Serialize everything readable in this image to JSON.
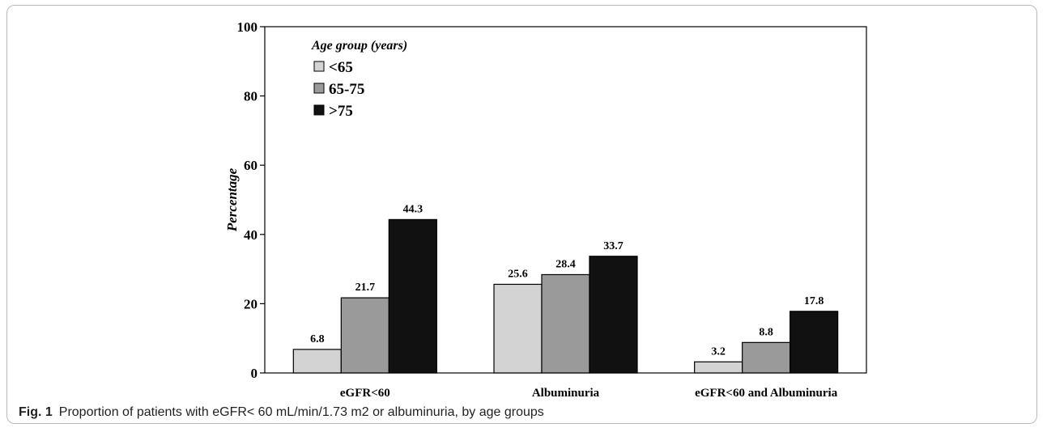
{
  "figure": {
    "caption_label": "Fig. 1",
    "caption_text": "Proportion of patients with eGFR< 60 mL/min/1.73 m2 or albuminuria, by age groups"
  },
  "chart_data": {
    "type": "bar",
    "title": "",
    "xlabel": "",
    "ylabel": "Percentage",
    "ylim": [
      0,
      100
    ],
    "yticks": [
      0,
      20,
      40,
      60,
      80,
      100
    ],
    "categories": [
      "eGFR<60",
      "Albuminuria",
      "eGFR<60 and Albuminuria"
    ],
    "legend": {
      "title": "Age group (years)",
      "position": "top-left"
    },
    "series": [
      {
        "name": "<65",
        "color": "#d3d3d3",
        "values": [
          6.8,
          25.6,
          3.2
        ],
        "labels": [
          "6.8",
          "25.6",
          "3.2"
        ]
      },
      {
        "name": "65-75",
        "color": "#9a9a9a",
        "values": [
          21.7,
          28.4,
          8.8
        ],
        "labels": [
          "21.7",
          "28.4",
          "8.8"
        ]
      },
      {
        "name": ">75",
        "color": "#111111",
        "values": [
          44.3,
          33.7,
          17.8
        ],
        "labels": [
          "44.3",
          "33.7",
          "17.8"
        ]
      }
    ],
    "grid": false
  }
}
